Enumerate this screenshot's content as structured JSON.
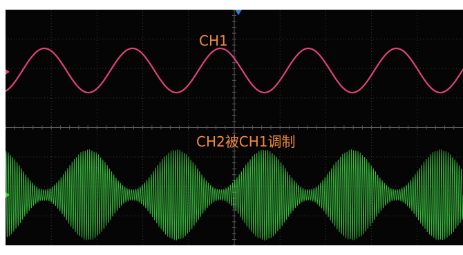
{
  "labels": {
    "ch1": "CH1",
    "ch2": "CH2被CH1调制"
  },
  "colors": {
    "background": "#050505",
    "grid": "#3a3a3a",
    "ch1": "#e2427e",
    "ch2": "#44d84a",
    "label_text": "#f08a3c",
    "trigger": "#3a7bd5"
  },
  "icons": {
    "ch1_marker": "channel-1-ground-marker",
    "ch2_marker": "channel-2-ground-marker",
    "trigger_marker": "trigger-position-marker"
  },
  "waveforms": {
    "ch1": {
      "type": "sine",
      "cycles_visible": 5.2
    },
    "ch2": {
      "type": "amplitude-modulated sine",
      "envelope_cycles_visible": 5.2,
      "carrier_to_envelope_ratio": 40,
      "modulation_depth": 0.8
    }
  }
}
